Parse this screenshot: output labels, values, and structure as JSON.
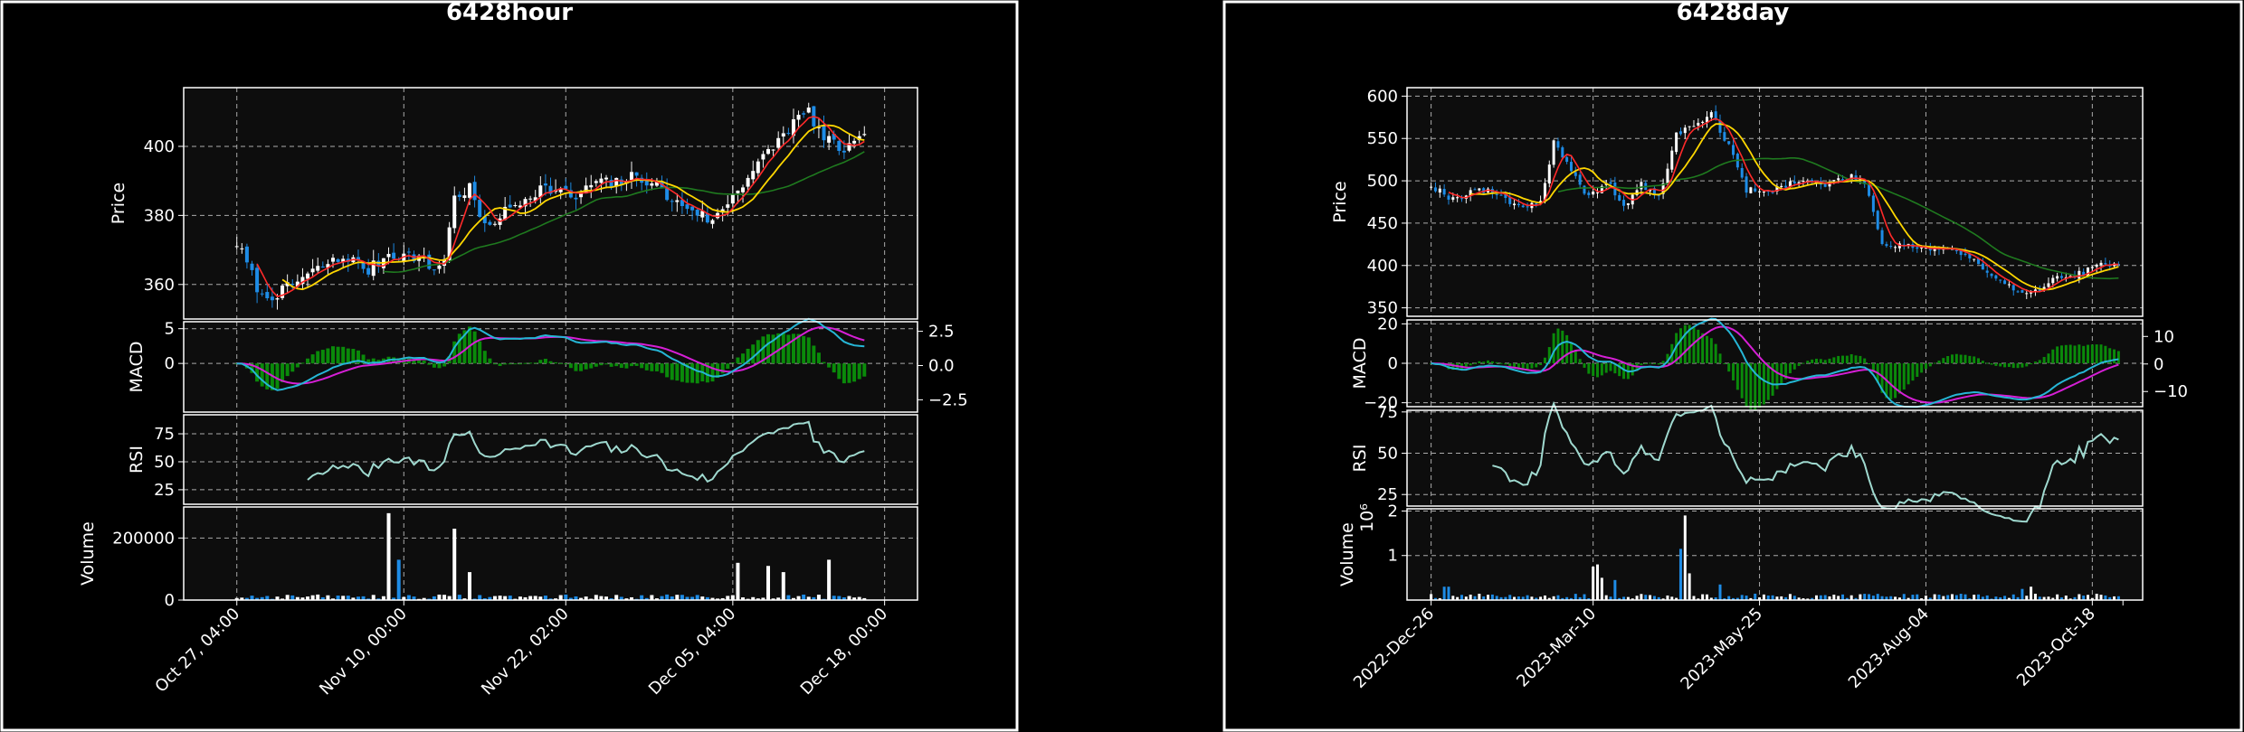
{
  "colors": {
    "background": "#000000",
    "plot_bg": "#0d0d0d",
    "grid": "#aaaaaa",
    "text": "#ffffff",
    "up_candle": "#ffffff",
    "down_candle": "#1e8ce6",
    "ma_short": "#ff2a2a",
    "ma_mid": "#ffd700",
    "ma_long": "#1f7a1f",
    "macd_line": "#26b6d6",
    "signal_line": "#d61fd6",
    "histogram": "#0a8a0a",
    "rsi": "#9fd9cf"
  },
  "chart_data": [
    {
      "type": "candlestick",
      "title": "6428hour",
      "x_ticks": [
        "Oct 27, 04:00",
        "Nov 10, 00:00",
        "Nov 22, 02:00",
        "Dec 05, 04:00",
        "Dec 18, 00:00"
      ],
      "panels": {
        "price": {
          "ylabel": "Price",
          "ylim": [
            350,
            417
          ],
          "yticks": [
            "360",
            "380",
            "400"
          ],
          "ytick_values": [
            360,
            380,
            400
          ],
          "close_anchors": [
            [
              0,
              372
            ],
            [
              2,
              366
            ],
            [
              5,
              356
            ],
            [
              9,
              358
            ],
            [
              13,
              362
            ],
            [
              18,
              366
            ],
            [
              22,
              368
            ],
            [
              26,
              364
            ],
            [
              30,
              369
            ],
            [
              36,
              368
            ],
            [
              39,
              364
            ],
            [
              41,
              368
            ],
            [
              43,
              385
            ],
            [
              46,
              388
            ],
            [
              49,
              376
            ],
            [
              52,
              380
            ],
            [
              56,
              384
            ],
            [
              60,
              388
            ],
            [
              64,
              387
            ],
            [
              67,
              385
            ],
            [
              71,
              390
            ],
            [
              74,
              389
            ],
            [
              78,
              391
            ],
            [
              82,
              390
            ],
            [
              86,
              384
            ],
            [
              90,
              382
            ],
            [
              94,
              378
            ],
            [
              98,
              386
            ],
            [
              102,
              393
            ],
            [
              106,
              400
            ],
            [
              110,
              407
            ],
            [
              113,
              410
            ],
            [
              116,
              402
            ],
            [
              120,
              399
            ],
            [
              124,
              402
            ]
          ]
        },
        "macd": {
          "ylabel": "MACD",
          "ylim": [
            -7,
            6
          ],
          "yticks": [
            "5",
            "0"
          ],
          "ytick_values": [
            5,
            0
          ],
          "right_ticks": [
            "2.5",
            "0.0",
            "−2.5"
          ],
          "right_tick_values": [
            2.5,
            0.0,
            -2.5
          ],
          "right_ylim": [
            -3.4,
            3.2
          ]
        },
        "rsi": {
          "ylabel": "RSI",
          "ylim": [
            12,
            92
          ],
          "yticks": [
            "75",
            "50",
            "25"
          ],
          "ytick_values": [
            75,
            50,
            25
          ]
        },
        "volume": {
          "ylabel": "Volume",
          "ylim": [
            0,
            300000
          ],
          "yticks": [
            "200000",
            "0"
          ],
          "ytick_values": [
            200000,
            0
          ],
          "spikes": [
            [
              30,
              280000
            ],
            [
              43,
              230000
            ],
            [
              32,
              130000
            ],
            [
              46,
              90000
            ],
            [
              105,
              110000
            ],
            [
              108,
              90000
            ],
            [
              117,
              130000
            ],
            [
              99,
              120000
            ]
          ]
        }
      }
    },
    {
      "type": "candlestick",
      "title": "6428day",
      "x_ticks": [
        "2022-Dec-26",
        "2023-Mar-10",
        "2023-May-25",
        "2023-Aug-04",
        "2023-Oct-18"
      ],
      "panels": {
        "price": {
          "ylabel": "Price",
          "ylim": [
            340,
            610
          ],
          "yticks": [
            "600",
            "550",
            "500",
            "450",
            "400",
            "350"
          ],
          "ytick_values": [
            600,
            550,
            500,
            450,
            400,
            350
          ],
          "close_anchors": [
            [
              0,
              495
            ],
            [
              5,
              478
            ],
            [
              10,
              490
            ],
            [
              15,
              485
            ],
            [
              20,
              470
            ],
            [
              25,
              475
            ],
            [
              28,
              545
            ],
            [
              32,
              510
            ],
            [
              36,
              480
            ],
            [
              40,
              500
            ],
            [
              44,
              470
            ],
            [
              48,
              495
            ],
            [
              52,
              480
            ],
            [
              56,
              555
            ],
            [
              60,
              565
            ],
            [
              64,
              580
            ],
            [
              68,
              540
            ],
            [
              72,
              490
            ],
            [
              76,
              485
            ],
            [
              80,
              495
            ],
            [
              85,
              500
            ],
            [
              90,
              495
            ],
            [
              95,
              505
            ],
            [
              99,
              500
            ],
            [
              103,
              425
            ],
            [
              108,
              425
            ],
            [
              113,
              420
            ],
            [
              118,
              420
            ],
            [
              123,
              410
            ],
            [
              128,
              385
            ],
            [
              133,
              372
            ],
            [
              138,
              370
            ],
            [
              143,
              385
            ],
            [
              148,
              390
            ],
            [
              153,
              400
            ],
            [
              157,
              400
            ]
          ]
        },
        "macd": {
          "ylabel": "MACD",
          "ylim": [
            -22,
            22
          ],
          "yticks": [
            "20",
            "0",
            "−20"
          ],
          "ytick_values": [
            20,
            0,
            -20
          ],
          "right_ticks": [
            "10",
            "0",
            "−10"
          ],
          "right_tick_values": [
            10,
            0,
            -10
          ],
          "right_ylim": [
            -15.5,
            16
          ]
        },
        "rsi": {
          "ylabel": "RSI",
          "ylim": [
            18,
            76
          ],
          "yticks": [
            "75",
            "50",
            "25"
          ],
          "ytick_values": [
            75,
            50,
            25
          ]
        },
        "volume": {
          "ylabel": "Volume",
          "exponent_label": "10⁶",
          "ylim": [
            0,
            2.05
          ],
          "yticks": [
            "2",
            "1"
          ],
          "ytick_values": [
            2,
            1
          ],
          "spikes": [
            [
              58,
              1.9
            ],
            [
              57,
              1.15
            ],
            [
              59,
              0.6
            ],
            [
              37,
              0.75
            ],
            [
              38,
              0.8
            ],
            [
              39,
              0.5
            ],
            [
              42,
              0.45
            ],
            [
              66,
              0.35
            ],
            [
              3,
              0.3
            ],
            [
              4,
              0.3
            ],
            [
              137,
              0.3
            ],
            [
              135,
              0.25
            ]
          ]
        }
      }
    }
  ]
}
